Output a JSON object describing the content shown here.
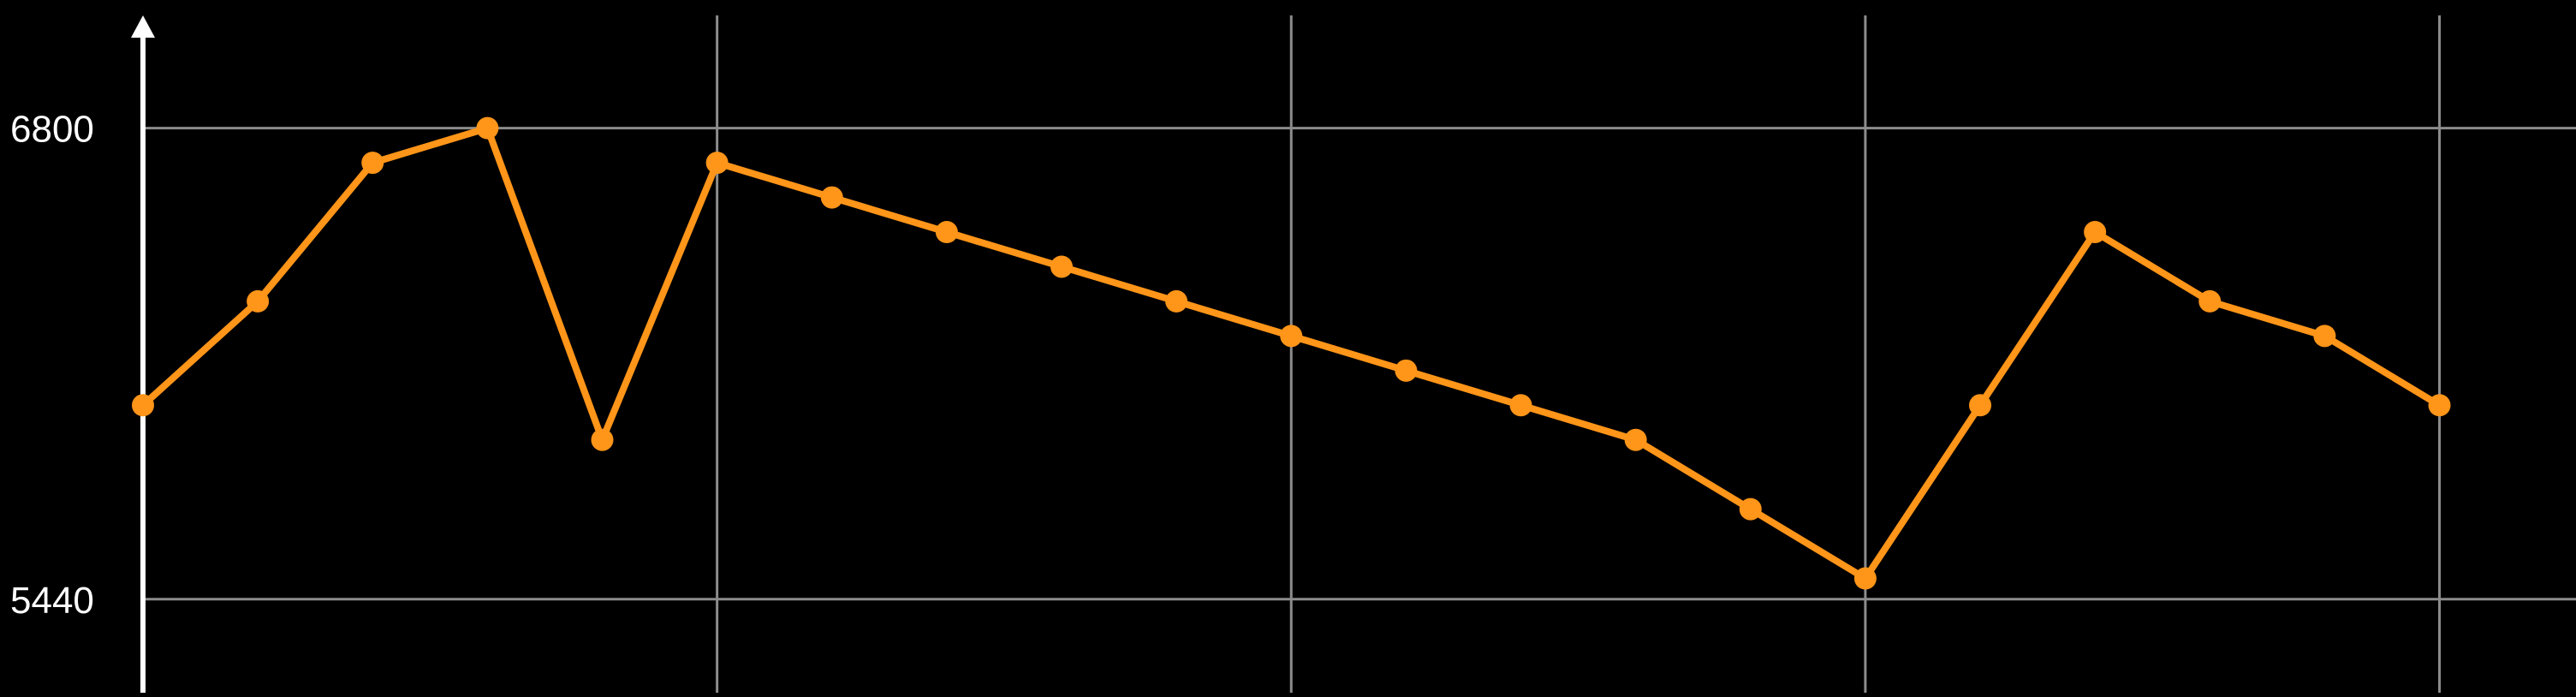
{
  "chart_data": {
    "type": "line",
    "title": "",
    "xlabel": "",
    "ylabel": "",
    "x": [
      0,
      1,
      2,
      3,
      4,
      5,
      6,
      7,
      8,
      9,
      10,
      11,
      12,
      13,
      14,
      15,
      16,
      17,
      18,
      19,
      20
    ],
    "y_tick_labels": [
      "6800",
      "5440"
    ],
    "y_ticks": [
      6800,
      5440
    ],
    "x_gridlines": [
      5,
      10,
      15,
      20
    ],
    "ylim": [
      5170,
      7170
    ],
    "xlim": [
      0,
      20.6
    ],
    "grid": true,
    "legend": "none",
    "series": [
      {
        "values": [
          6000,
          6300,
          6700,
          6800,
          5900,
          6700,
          6600,
          6500,
          6400,
          6300,
          6200,
          6100,
          6000,
          5900,
          5700,
          5500,
          6000,
          6500,
          6300,
          6200,
          6000
        ],
        "color": "#ff9519"
      }
    ],
    "colors": {
      "background": "#000000",
      "grid": "#8c8c8c",
      "axis": "#ffffff",
      "text": "#ffffff"
    }
  }
}
